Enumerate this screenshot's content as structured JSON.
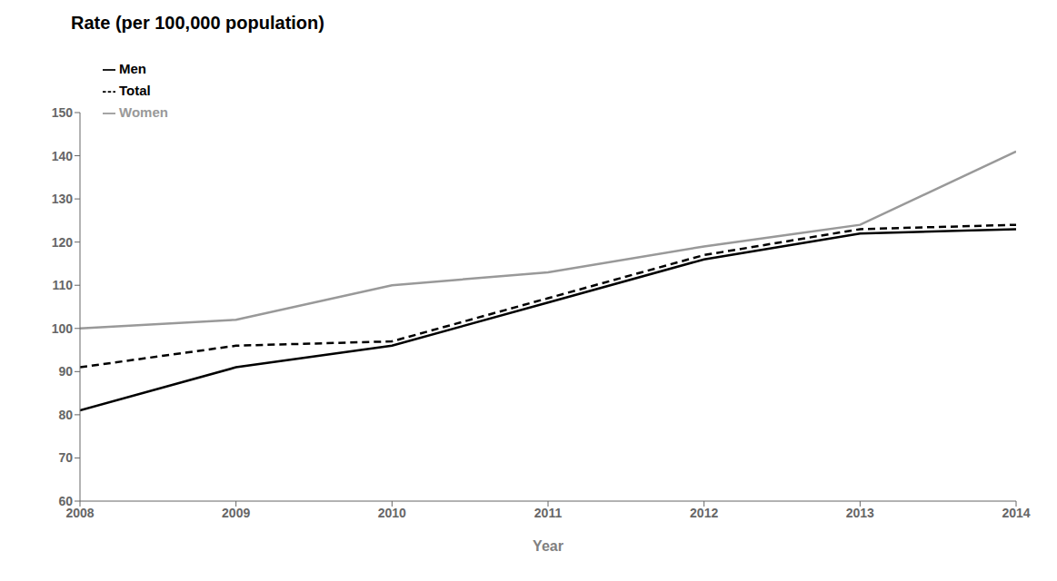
{
  "chart_data": {
    "type": "line",
    "title": "Rate (per 100,000 population)",
    "x_label": "Year",
    "x": [
      2008,
      2009,
      2010,
      2011,
      2012,
      2013,
      2014
    ],
    "xlim": [
      2008,
      2014
    ],
    "xticks": [
      2008,
      2009,
      2010,
      2011,
      2012,
      2013,
      2014
    ],
    "ylim": [
      60,
      150
    ],
    "yticks": [
      60,
      70,
      80,
      90,
      100,
      110,
      120,
      130,
      140,
      150
    ],
    "grid": false,
    "legend": "upper left",
    "series": [
      {
        "name": "Total",
        "color": "#000000",
        "line_style": "dashed",
        "values": [
          91,
          96,
          97,
          107,
          117,
          123,
          124
        ]
      },
      {
        "name": "Men",
        "color": "#000000",
        "line_style": "solid",
        "values": [
          81,
          91,
          96,
          106,
          116,
          122,
          123
        ]
      },
      {
        "name": "Women",
        "color": "#999999",
        "line_style": "solid",
        "values": [
          100,
          102,
          110,
          113,
          119,
          124,
          141
        ]
      }
    ]
  }
}
